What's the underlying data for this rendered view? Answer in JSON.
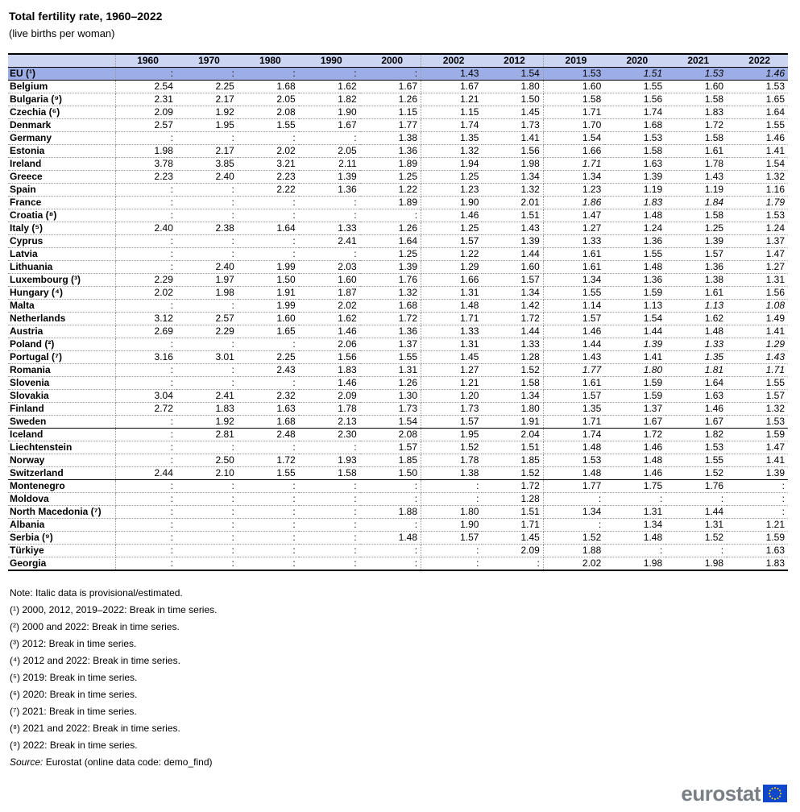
{
  "title": "Total fertility rate, 1960–2022",
  "subtitle": "(live births per woman)",
  "chart_data": {
    "type": "table",
    "title": "Total fertility rate, 1960–2022",
    "unit": "live births per woman",
    "columns": [
      "1960",
      "1970",
      "1980",
      "1990",
      "2000",
      "2002",
      "2012",
      "2019",
      "2020",
      "2021",
      "2022"
    ],
    "rows": [
      {
        "label": "EU (¹)",
        "group": "eu",
        "values": [
          ":",
          ":",
          ":",
          ":",
          ":",
          "1.43",
          "1.54",
          "1.53",
          "1.51",
          "1.53",
          "1.46"
        ],
        "italic": [
          8,
          9,
          10
        ]
      },
      {
        "label": "Belgium",
        "values": [
          "2.54",
          "2.25",
          "1.68",
          "1.62",
          "1.67",
          "1.67",
          "1.80",
          "1.60",
          "1.55",
          "1.60",
          "1.53"
        ]
      },
      {
        "label": "Bulgaria (⁹)",
        "values": [
          "2.31",
          "2.17",
          "2.05",
          "1.82",
          "1.26",
          "1.21",
          "1.50",
          "1.58",
          "1.56",
          "1.58",
          "1.65"
        ]
      },
      {
        "label": "Czechia (⁶)",
        "values": [
          "2.09",
          "1.92",
          "2.08",
          "1.90",
          "1.15",
          "1.15",
          "1.45",
          "1.71",
          "1.74",
          "1.83",
          "1.64"
        ]
      },
      {
        "label": "Denmark",
        "values": [
          "2.57",
          "1.95",
          "1.55",
          "1.67",
          "1.77",
          "1.74",
          "1.73",
          "1.70",
          "1.68",
          "1.72",
          "1.55"
        ]
      },
      {
        "label": "Germany",
        "values": [
          ":",
          ":",
          ":",
          ":",
          "1.38",
          "1.35",
          "1.41",
          "1.54",
          "1.53",
          "1.58",
          "1.46"
        ]
      },
      {
        "label": "Estonia",
        "values": [
          "1.98",
          "2.17",
          "2.02",
          "2.05",
          "1.36",
          "1.32",
          "1.56",
          "1.66",
          "1.58",
          "1.61",
          "1.41"
        ]
      },
      {
        "label": "Ireland",
        "values": [
          "3.78",
          "3.85",
          "3.21",
          "2.11",
          "1.89",
          "1.94",
          "1.98",
          "1.71",
          "1.63",
          "1.78",
          "1.54"
        ],
        "italic": [
          7
        ]
      },
      {
        "label": "Greece",
        "values": [
          "2.23",
          "2.40",
          "2.23",
          "1.39",
          "1.25",
          "1.25",
          "1.34",
          "1.34",
          "1.39",
          "1.43",
          "1.32"
        ]
      },
      {
        "label": "Spain",
        "values": [
          ":",
          ":",
          "2.22",
          "1.36",
          "1.22",
          "1.23",
          "1.32",
          "1.23",
          "1.19",
          "1.19",
          "1.16"
        ]
      },
      {
        "label": "France",
        "values": [
          ":",
          ":",
          ":",
          ":",
          "1.89",
          "1.90",
          "2.01",
          "1.86",
          "1.83",
          "1.84",
          "1.79"
        ],
        "italic": [
          7,
          8,
          9,
          10
        ]
      },
      {
        "label": "Croatia (⁸)",
        "values": [
          ":",
          ":",
          ":",
          ":",
          ":",
          "1.46",
          "1.51",
          "1.47",
          "1.48",
          "1.58",
          "1.53"
        ]
      },
      {
        "label": "Italy (⁵)",
        "values": [
          "2.40",
          "2.38",
          "1.64",
          "1.33",
          "1.26",
          "1.25",
          "1.43",
          "1.27",
          "1.24",
          "1.25",
          "1.24"
        ]
      },
      {
        "label": "Cyprus",
        "values": [
          ":",
          ":",
          ":",
          "2.41",
          "1.64",
          "1.57",
          "1.39",
          "1.33",
          "1.36",
          "1.39",
          "1.37"
        ]
      },
      {
        "label": "Latvia",
        "values": [
          ":",
          ":",
          ":",
          ":",
          "1.25",
          "1.22",
          "1.44",
          "1.61",
          "1.55",
          "1.57",
          "1.47"
        ]
      },
      {
        "label": "Lithuania",
        "values": [
          ":",
          "2.40",
          "1.99",
          "2.03",
          "1.39",
          "1.29",
          "1.60",
          "1.61",
          "1.48",
          "1.36",
          "1.27"
        ]
      },
      {
        "label": "Luxembourg (³)",
        "values": [
          "2.29",
          "1.97",
          "1.50",
          "1.60",
          "1.76",
          "1.66",
          "1.57",
          "1.34",
          "1.36",
          "1.38",
          "1.31"
        ]
      },
      {
        "label": "Hungary (⁴)",
        "values": [
          "2.02",
          "1.98",
          "1.91",
          "1.87",
          "1.32",
          "1.31",
          "1.34",
          "1.55",
          "1.59",
          "1.61",
          "1.56"
        ]
      },
      {
        "label": "Malta",
        "values": [
          ":",
          ":",
          "1.99",
          "2.02",
          "1.68",
          "1.48",
          "1.42",
          "1.14",
          "1.13",
          "1.13",
          "1.08"
        ],
        "italic": [
          9,
          10
        ]
      },
      {
        "label": "Netherlands",
        "values": [
          "3.12",
          "2.57",
          "1.60",
          "1.62",
          "1.72",
          "1.71",
          "1.72",
          "1.57",
          "1.54",
          "1.62",
          "1.49"
        ]
      },
      {
        "label": "Austria",
        "values": [
          "2.69",
          "2.29",
          "1.65",
          "1.46",
          "1.36",
          "1.33",
          "1.44",
          "1.46",
          "1.44",
          "1.48",
          "1.41"
        ]
      },
      {
        "label": "Poland (²)",
        "values": [
          ":",
          ":",
          ":",
          "2.06",
          "1.37",
          "1.31",
          "1.33",
          "1.44",
          "1.39",
          "1.33",
          "1.29"
        ],
        "italic": [
          8,
          9,
          10
        ]
      },
      {
        "label": "Portugal (⁷)",
        "values": [
          "3.16",
          "3.01",
          "2.25",
          "1.56",
          "1.55",
          "1.45",
          "1.28",
          "1.43",
          "1.41",
          "1.35",
          "1.43"
        ],
        "italic": [
          9,
          10
        ]
      },
      {
        "label": "Romania",
        "values": [
          ":",
          ":",
          "2.43",
          "1.83",
          "1.31",
          "1.27",
          "1.52",
          "1.77",
          "1.80",
          "1.81",
          "1.71"
        ],
        "italic": [
          7,
          8,
          9,
          10
        ]
      },
      {
        "label": "Slovenia",
        "values": [
          ":",
          ":",
          ":",
          "1.46",
          "1.26",
          "1.21",
          "1.58",
          "1.61",
          "1.59",
          "1.64",
          "1.55"
        ]
      },
      {
        "label": "Slovakia",
        "values": [
          "3.04",
          "2.41",
          "2.32",
          "2.09",
          "1.30",
          "1.20",
          "1.34",
          "1.57",
          "1.59",
          "1.63",
          "1.57"
        ]
      },
      {
        "label": "Finland",
        "values": [
          "2.72",
          "1.83",
          "1.63",
          "1.78",
          "1.73",
          "1.73",
          "1.80",
          "1.35",
          "1.37",
          "1.46",
          "1.32"
        ]
      },
      {
        "label": "Sweden",
        "group_end": true,
        "values": [
          ":",
          "1.92",
          "1.68",
          "2.13",
          "1.54",
          "1.57",
          "1.91",
          "1.71",
          "1.67",
          "1.67",
          "1.53"
        ]
      },
      {
        "label": "Iceland",
        "values": [
          ":",
          "2.81",
          "2.48",
          "2.30",
          "2.08",
          "1.95",
          "2.04",
          "1.74",
          "1.72",
          "1.82",
          "1.59"
        ]
      },
      {
        "label": "Liechtenstein",
        "values": [
          ":",
          ":",
          ":",
          ":",
          "1.57",
          "1.52",
          "1.51",
          "1.48",
          "1.46",
          "1.53",
          "1.47"
        ]
      },
      {
        "label": "Norway",
        "values": [
          ":",
          "2.50",
          "1.72",
          "1.93",
          "1.85",
          "1.78",
          "1.85",
          "1.53",
          "1.48",
          "1.55",
          "1.41"
        ]
      },
      {
        "label": "Switzerland",
        "group_end": true,
        "values": [
          "2.44",
          "2.10",
          "1.55",
          "1.58",
          "1.50",
          "1.38",
          "1.52",
          "1.48",
          "1.46",
          "1.52",
          "1.39"
        ]
      },
      {
        "label": "Montenegro",
        "values": [
          ":",
          ":",
          ":",
          ":",
          ":",
          ":",
          "1.72",
          "1.77",
          "1.75",
          "1.76",
          ":"
        ]
      },
      {
        "label": "Moldova",
        "values": [
          ":",
          ":",
          ":",
          ":",
          ":",
          ":",
          "1.28",
          ":",
          ":",
          ":",
          ":"
        ]
      },
      {
        "label": "North Macedonia (⁷)",
        "values": [
          ":",
          ":",
          ":",
          ":",
          "1.88",
          "1.80",
          "1.51",
          "1.34",
          "1.31",
          "1.44",
          ":"
        ]
      },
      {
        "label": "Albania",
        "values": [
          ":",
          ":",
          ":",
          ":",
          ":",
          "1.90",
          "1.71",
          ":",
          "1.34",
          "1.31",
          "1.21"
        ]
      },
      {
        "label": "Serbia (⁹)",
        "values": [
          ":",
          ":",
          ":",
          ":",
          "1.48",
          "1.57",
          "1.45",
          "1.52",
          "1.48",
          "1.52",
          "1.59"
        ]
      },
      {
        "label": "Türkiye",
        "values": [
          ":",
          ":",
          ":",
          ":",
          ":",
          ":",
          "2.09",
          "1.88",
          ":",
          ":",
          "1.63"
        ]
      },
      {
        "label": "Georgia",
        "values": [
          ":",
          ":",
          ":",
          ":",
          ":",
          ":",
          ":",
          "2.02",
          "1.98",
          "1.98",
          "1.83"
        ]
      }
    ]
  },
  "notes": [
    "Note: Italic data is provisional/estimated.",
    "(¹) 2000, 2012, 2019–2022: Break in time series.",
    "(²) 2000 and 2022: Break in time series.",
    "(³) 2012: Break in time series.",
    "(⁴) 2012 and 2022: Break in time series.",
    "(⁵) 2019: Break in time series.",
    "(⁶) 2020: Break in time series.",
    "(⁷) 2021: Break in time series.",
    "(⁸) 2021 and 2022: Break in time series.",
    "(⁹) 2022: Break in time series."
  ],
  "source": {
    "label": "Source:",
    "text": "Eurostat (online data code: demo_find)"
  },
  "logo": {
    "text": "eurostat"
  },
  "colors": {
    "header_bg": "#ccd5f2",
    "eu_row_bg": "#9daee6",
    "flag": "#0e47cb",
    "logo_text": "#7a7f86"
  }
}
